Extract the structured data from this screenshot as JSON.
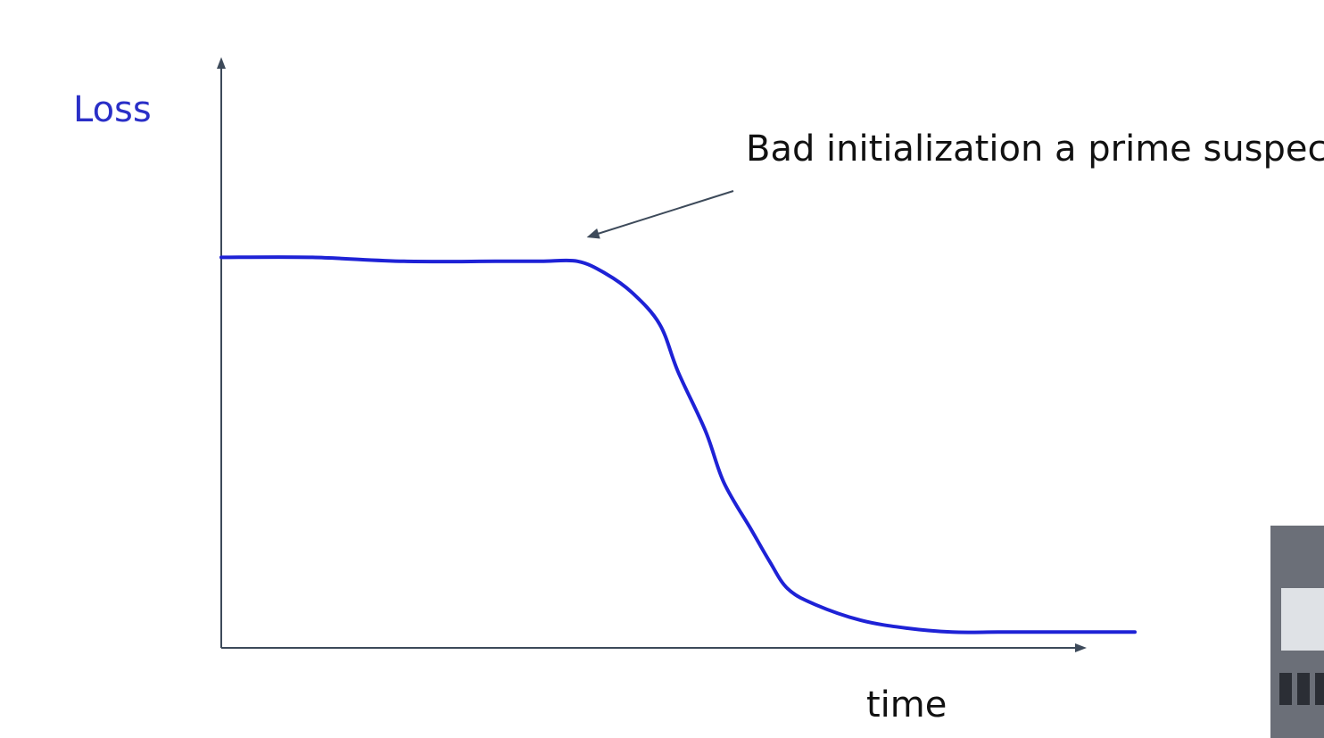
{
  "chart_data": {
    "type": "line",
    "title": "",
    "xlabel": "time",
    "ylabel": "Loss",
    "xlim": [
      0,
      1
    ],
    "ylim": [
      0,
      1
    ],
    "grid": false,
    "legend": "none",
    "series": [
      {
        "color": "#1e22d6",
        "x": [
          0.0,
          0.1,
          0.2,
          0.3,
          0.35,
          0.39,
          0.42,
          0.45,
          0.48,
          0.5,
          0.53,
          0.55,
          0.58,
          0.6,
          0.62,
          0.65,
          0.7,
          0.75,
          0.8,
          0.85,
          0.9,
          0.95,
          1.0
        ],
        "y": [
          0.99,
          0.99,
          0.98,
          0.98,
          0.98,
          0.98,
          0.95,
          0.9,
          0.82,
          0.7,
          0.55,
          0.42,
          0.3,
          0.22,
          0.15,
          0.11,
          0.07,
          0.05,
          0.04,
          0.04,
          0.04,
          0.04,
          0.04
        ]
      }
    ],
    "annotations": [
      {
        "text": "Bad initialization a prime suspect",
        "x": 0.4,
        "y": 1.0
      }
    ]
  }
}
